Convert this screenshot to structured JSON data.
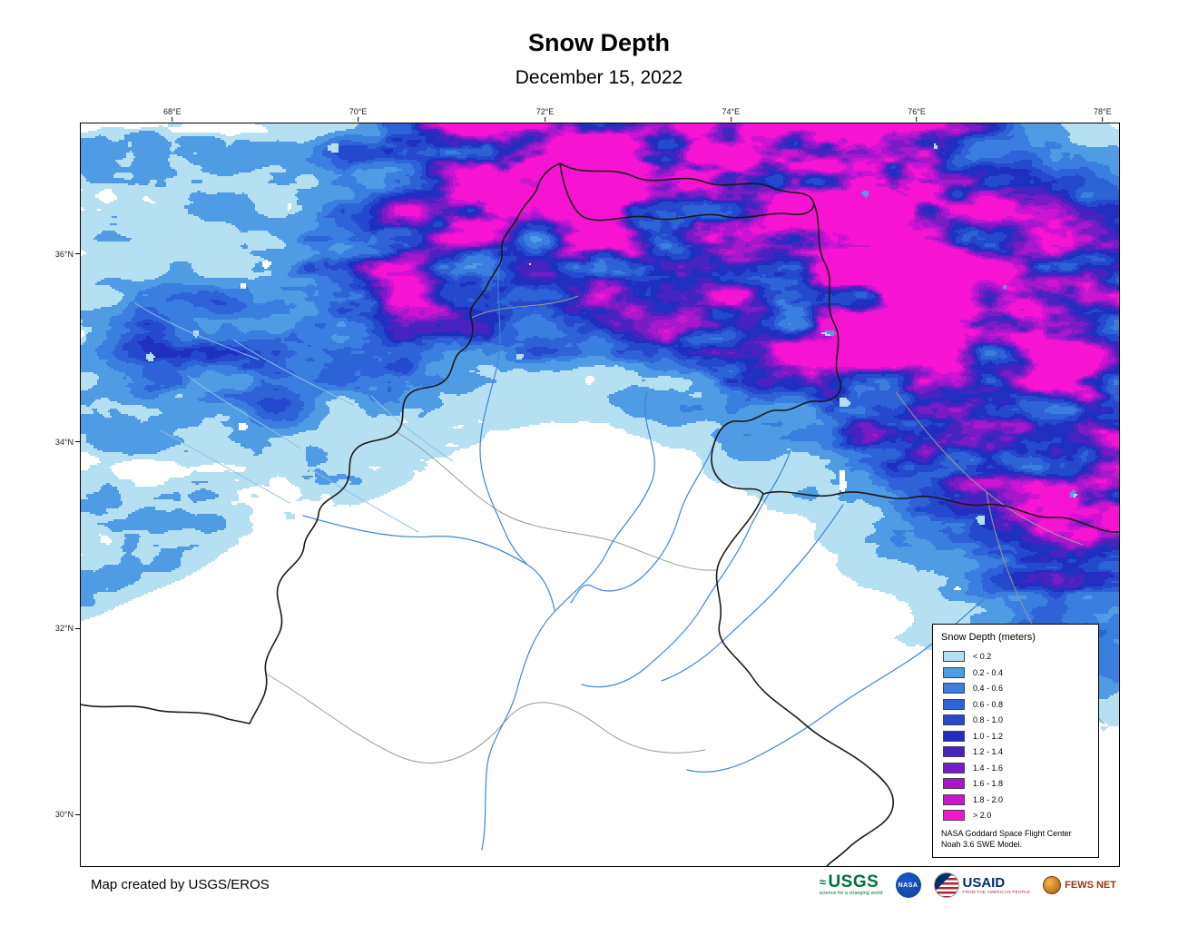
{
  "header": {
    "title": "Snow Depth",
    "subtitle": "December 15, 2022"
  },
  "axes": {
    "top": [
      {
        "label": "68°E",
        "x": 0.089
      },
      {
        "label": "70°E",
        "x": 0.268
      },
      {
        "label": "72°E",
        "x": 0.448
      },
      {
        "label": "74°E",
        "x": 0.627
      },
      {
        "label": "76°E",
        "x": 0.806
      },
      {
        "label": "78°E",
        "x": 0.985
      }
    ],
    "left": [
      {
        "label": "36°N",
        "y": 0.177
      },
      {
        "label": "34°N",
        "y": 0.43
      },
      {
        "label": "32°N",
        "y": 0.681
      },
      {
        "label": "30°N",
        "y": 0.932
      }
    ]
  },
  "legend": {
    "title": "Snow Depth (meters)",
    "classes": [
      {
        "label": "< 0.2",
        "color": "#b5e0f2"
      },
      {
        "label": "0.2 - 0.4",
        "color": "#4f9be4"
      },
      {
        "label": "0.4 - 0.6",
        "color": "#3a7fe0"
      },
      {
        "label": "0.6 - 0.8",
        "color": "#2e63d8"
      },
      {
        "label": "0.8 - 1.0",
        "color": "#2449cc"
      },
      {
        "label": "1.0 - 1.2",
        "color": "#1f30c0"
      },
      {
        "label": "1.2 - 1.4",
        "color": "#4723c0"
      },
      {
        "label": "1.4 - 1.6",
        "color": "#7a1cc6"
      },
      {
        "label": "1.6 - 1.8",
        "color": "#a518cc"
      },
      {
        "label": "1.8 - 2.0",
        "color": "#cc14d2"
      },
      {
        "label": "> 2.0",
        "color": "#f614d2"
      }
    ],
    "note_line1": "NASA Goddard Space Flight Center",
    "note_line2": "Noah 3.6 SWE Model."
  },
  "map": {
    "no_snow_color": "#ffffff",
    "border_color": "#1a1a1a",
    "admin_color": "#999999",
    "river_color": "#3f85d6",
    "stream_color": "#8fc0e8"
  },
  "footer": {
    "credit": "Map created by USGS/EROS",
    "logos": [
      {
        "name": "usgs",
        "text": "USGS",
        "tagline": "science for a changing world"
      },
      {
        "name": "nasa",
        "text": "NASA"
      },
      {
        "name": "usaid",
        "text": "USAID",
        "tagline": "FROM THE AMERICAN PEOPLE"
      },
      {
        "name": "fews-net",
        "text": "FEWS NET"
      }
    ]
  }
}
